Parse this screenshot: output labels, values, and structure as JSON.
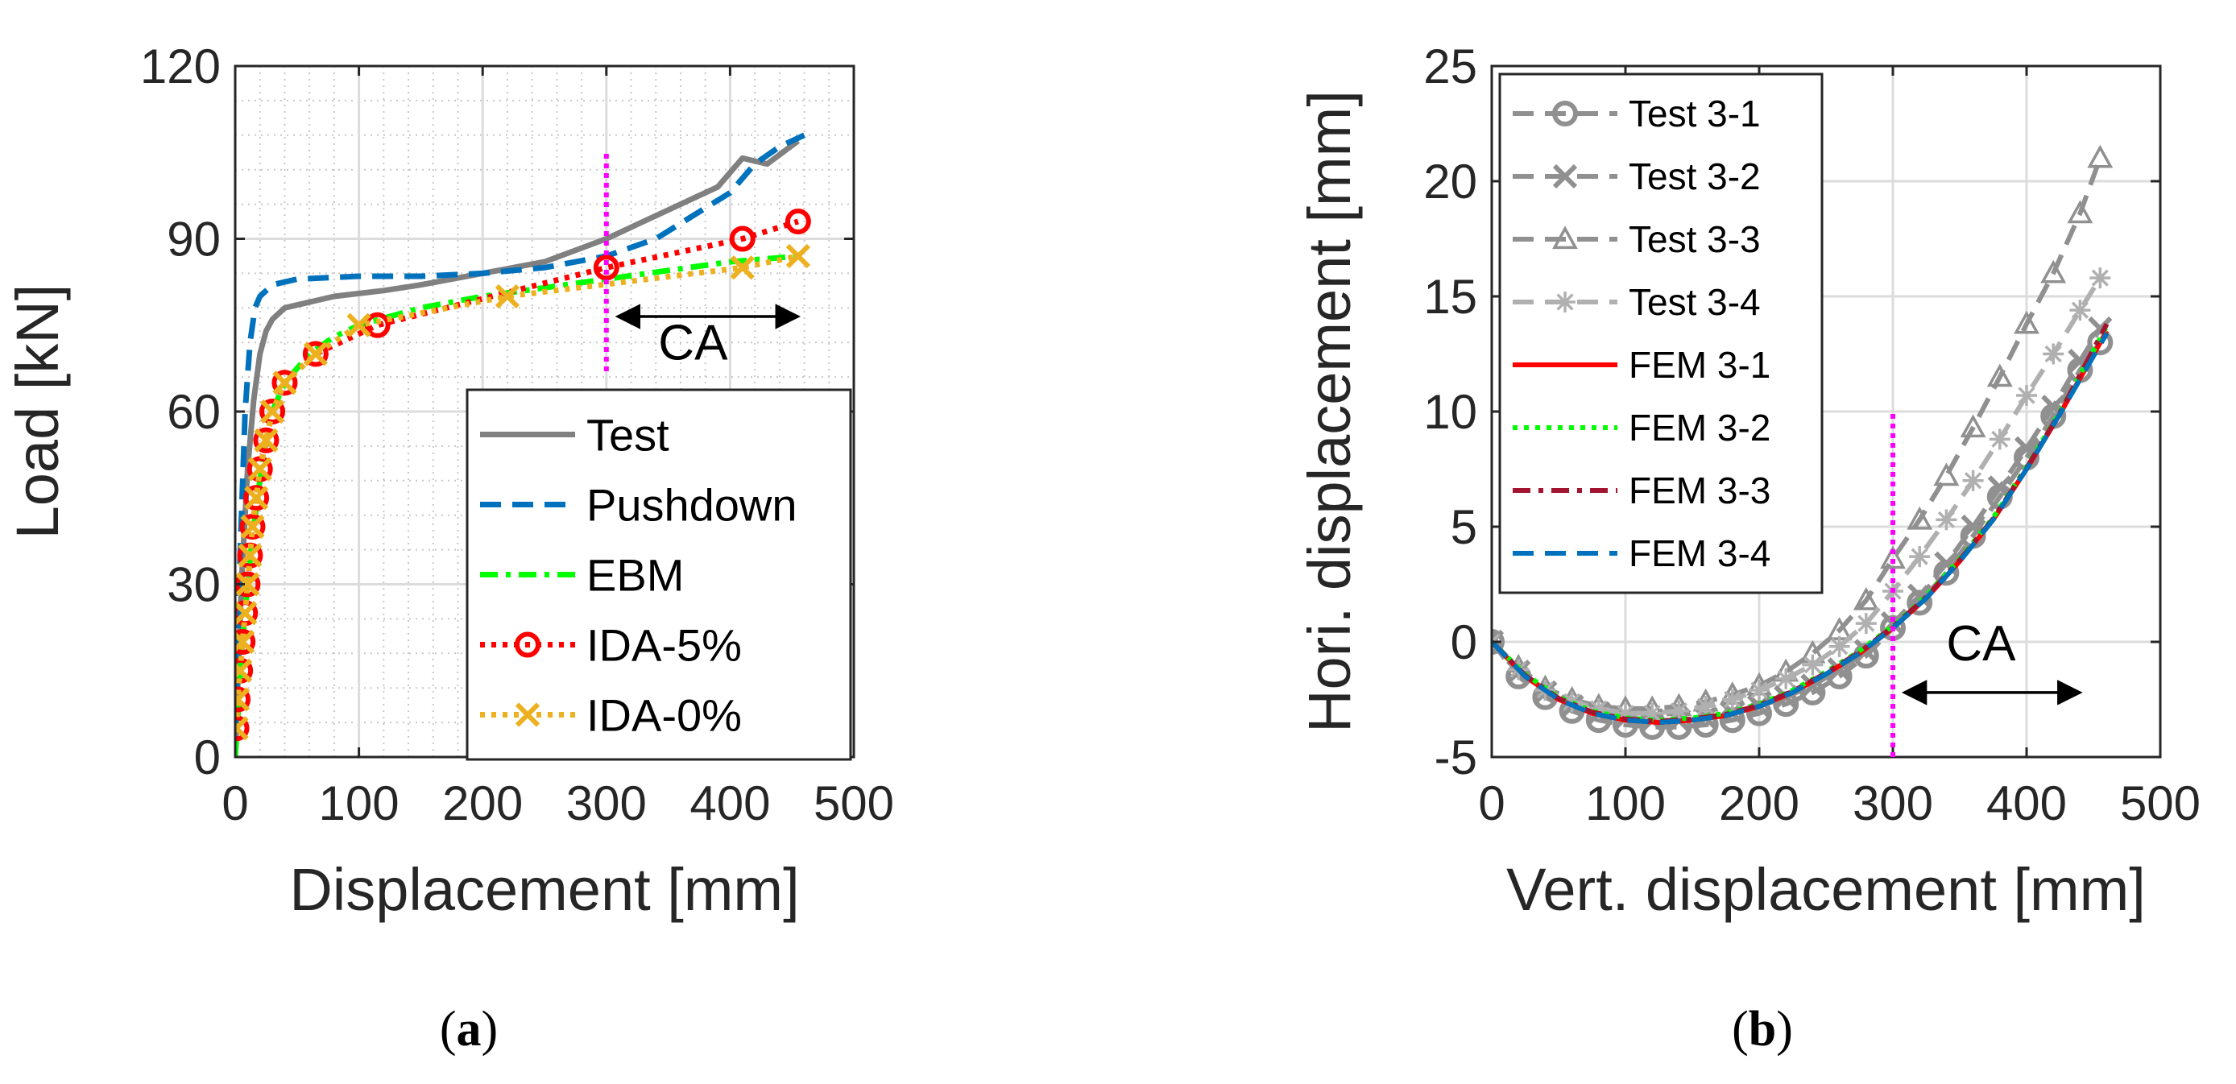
{
  "chart_data": [
    {
      "type": "line",
      "panel_label": {
        "open": "(",
        "letter": "a",
        "close": ")"
      },
      "xlabel": "Displacement [mm]",
      "ylabel": "Load [kN]",
      "xlim": [
        0,
        500
      ],
      "ylim": [
        0,
        120
      ],
      "xticks": [
        0,
        100,
        200,
        300,
        400,
        500
      ],
      "yticks": [
        0,
        30,
        60,
        90,
        120
      ],
      "grid": true,
      "legend_position": "bottom-right",
      "annotation": {
        "text": "CA",
        "vline_x": 300,
        "vline_y": [
          67,
          105
        ],
        "arrow_x": [
          300,
          455
        ],
        "arrow_y": 76.5,
        "text_x": 342,
        "text_y": 69
      },
      "series": [
        {
          "name": "Test",
          "color": "#808080",
          "style": "solid",
          "marker": "none",
          "x": [
            0,
            5,
            10,
            15,
            20,
            25,
            30,
            35,
            40,
            50,
            60,
            80,
            100,
            120,
            150,
            200,
            250,
            300,
            330,
            360,
            390,
            410,
            430,
            455
          ],
          "y": [
            0,
            30,
            50,
            62,
            70,
            74,
            76,
            77,
            78,
            78.5,
            79,
            80,
            80.5,
            81,
            82,
            84,
            86,
            90,
            93,
            96,
            99,
            104,
            103,
            107
          ]
        },
        {
          "name": "Pushdown",
          "color": "#0072BD",
          "style": "dashed",
          "marker": "none",
          "x": [
            0,
            4,
            8,
            12,
            16,
            20,
            30,
            50,
            100,
            150,
            200,
            250,
            300,
            340,
            370,
            400,
            420,
            440,
            460
          ],
          "y": [
            0,
            35,
            60,
            72,
            78,
            80,
            82,
            83,
            83.5,
            83.5,
            84,
            85,
            87,
            90,
            94,
            98,
            103,
            106,
            108
          ]
        },
        {
          "name": "EBM",
          "color": "#00FF00",
          "style": "dashdot",
          "marker": "none",
          "x": [
            0,
            3,
            6,
            10,
            15,
            20,
            25,
            30,
            40,
            60,
            80,
            100,
            150,
            200,
            250,
            300,
            350,
            400,
            455
          ],
          "y": [
            0,
            10,
            20,
            30,
            40,
            48,
            55,
            60,
            65,
            70,
            73,
            75,
            78,
            80,
            81.5,
            83,
            84.5,
            86,
            87
          ]
        },
        {
          "name": "IDA-5%",
          "color": "#FF0000",
          "style": "dotted",
          "marker": "circle",
          "x": [
            1,
            2,
            4,
            6,
            8,
            10,
            12,
            14,
            17,
            20,
            25,
            30,
            40,
            65,
            115,
            300,
            410,
            455
          ],
          "y": [
            5,
            10,
            15,
            20,
            25,
            30,
            35,
            40,
            45,
            50,
            55,
            60,
            65,
            70,
            75,
            85,
            90,
            93
          ]
        },
        {
          "name": "IDA-0%",
          "color": "#EDB120",
          "style": "dotted",
          "marker": "x",
          "x": [
            1,
            2,
            4,
            6,
            8,
            10,
            12,
            14,
            17,
            20,
            25,
            30,
            40,
            65,
            100,
            220,
            410,
            455
          ],
          "y": [
            5,
            10,
            15,
            20,
            25,
            30,
            35,
            40,
            45,
            50,
            55,
            60,
            65,
            70,
            75,
            80,
            85,
            87
          ]
        }
      ]
    },
    {
      "type": "line",
      "panel_label": {
        "open": "(",
        "letter": "b",
        "close": ")"
      },
      "xlabel": "Vert. displacement [mm]",
      "ylabel": "Hori. displacement [mm]",
      "xlim": [
        0,
        500
      ],
      "ylim": [
        -5,
        25
      ],
      "xticks": [
        0,
        100,
        200,
        300,
        400,
        500
      ],
      "yticks": [
        -5,
        0,
        5,
        10,
        15,
        20,
        25
      ],
      "grid": true,
      "legend_position": "top-left",
      "annotation": {
        "text": "CA",
        "vline_x": 300,
        "vline_y": [
          -5,
          10
        ],
        "arrow_x": [
          300,
          440
        ],
        "arrow_y": -2.2,
        "text_x": 340,
        "text_y": -0.8
      },
      "series": [
        {
          "name": "Test 3-1",
          "color": "#909090",
          "style": "dashed",
          "marker": "circle",
          "x": [
            0,
            20,
            40,
            60,
            80,
            100,
            120,
            140,
            160,
            180,
            200,
            220,
            240,
            260,
            280,
            300,
            320,
            340,
            360,
            380,
            400,
            420,
            440,
            455
          ],
          "y": [
            0,
            -1.5,
            -2.4,
            -3,
            -3.4,
            -3.6,
            -3.7,
            -3.7,
            -3.6,
            -3.4,
            -3.1,
            -2.7,
            -2.2,
            -1.5,
            -0.6,
            0.6,
            1.7,
            3,
            4.6,
            6.3,
            8,
            9.8,
            11.8,
            13
          ]
        },
        {
          "name": "Test 3-2",
          "color": "#909090",
          "style": "dashed",
          "marker": "x",
          "x": [
            0,
            20,
            40,
            60,
            80,
            100,
            120,
            140,
            160,
            180,
            200,
            220,
            240,
            260,
            280,
            300,
            320,
            340,
            360,
            380,
            400,
            420,
            440,
            455
          ],
          "y": [
            0,
            -1.3,
            -2.2,
            -2.8,
            -3.1,
            -3.3,
            -3.4,
            -3.4,
            -3.3,
            -3.1,
            -2.8,
            -2.4,
            -1.9,
            -1.2,
            -0.4,
            0.8,
            2,
            3.4,
            5,
            6.7,
            8.4,
            10.2,
            12.2,
            13.6
          ]
        },
        {
          "name": "Test 3-3",
          "color": "#909090",
          "style": "dashed",
          "marker": "triangle",
          "x": [
            0,
            20,
            40,
            60,
            80,
            100,
            120,
            140,
            160,
            180,
            200,
            220,
            240,
            260,
            280,
            300,
            320,
            340,
            360,
            380,
            400,
            420,
            440,
            455
          ],
          "y": [
            0,
            -1.1,
            -2,
            -2.5,
            -2.8,
            -2.9,
            -2.9,
            -2.8,
            -2.6,
            -2.3,
            -1.9,
            -1.3,
            -0.5,
            0.5,
            1.8,
            3.6,
            5.3,
            7.2,
            9.3,
            11.5,
            13.8,
            16,
            18.6,
            21
          ]
        },
        {
          "name": "Test 3-4",
          "color": "#B0B0B0",
          "style": "dashed",
          "marker": "asterisk",
          "x": [
            0,
            20,
            40,
            60,
            80,
            100,
            120,
            140,
            160,
            180,
            200,
            220,
            240,
            260,
            280,
            300,
            320,
            340,
            360,
            380,
            400,
            420,
            440,
            455
          ],
          "y": [
            0,
            -1.2,
            -2.1,
            -2.6,
            -2.9,
            -3.1,
            -3.1,
            -3,
            -2.8,
            -2.5,
            -2.1,
            -1.6,
            -1,
            -0.2,
            0.8,
            2.2,
            3.7,
            5.3,
            7,
            8.8,
            10.7,
            12.5,
            14.4,
            15.8
          ]
        },
        {
          "name": "FEM 3-1",
          "color": "#FF0000",
          "style": "solid",
          "marker": "none",
          "x": [
            0,
            25,
            50,
            75,
            100,
            125,
            150,
            175,
            200,
            225,
            250,
            275,
            300,
            325,
            350,
            375,
            400,
            425,
            460
          ],
          "y": [
            0,
            -1.5,
            -2.5,
            -3.1,
            -3.4,
            -3.5,
            -3.4,
            -3.2,
            -2.8,
            -2.2,
            -1.4,
            -0.5,
            0.6,
            1.9,
            3.5,
            5.3,
            7.5,
            9.9,
            13.5
          ]
        },
        {
          "name": "FEM 3-2",
          "color": "#00FF00",
          "style": "dotted",
          "marker": "none",
          "x": [
            0,
            25,
            50,
            75,
            100,
            125,
            150,
            175,
            200,
            225,
            250,
            275,
            300,
            325,
            350,
            375,
            400,
            425,
            460
          ],
          "y": [
            0,
            -1.4,
            -2.4,
            -3,
            -3.3,
            -3.4,
            -3.3,
            -3.1,
            -2.7,
            -2.1,
            -1.3,
            -0.4,
            0.7,
            2,
            3.6,
            5.4,
            7.6,
            10,
            13.7
          ]
        },
        {
          "name": "FEM 3-3",
          "color": "#A2142F",
          "style": "dashdot",
          "marker": "none",
          "x": [
            0,
            25,
            50,
            75,
            100,
            125,
            150,
            175,
            200,
            225,
            250,
            275,
            300,
            325,
            350,
            375,
            400,
            425,
            460
          ],
          "y": [
            0,
            -1.45,
            -2.45,
            -3.05,
            -3.35,
            -3.45,
            -3.35,
            -3.15,
            -2.75,
            -2.15,
            -1.35,
            -0.45,
            0.65,
            1.95,
            3.55,
            5.35,
            7.55,
            9.95,
            13.8
          ]
        },
        {
          "name": "FEM 3-4",
          "color": "#0072BD",
          "style": "dashed",
          "marker": "none",
          "x": [
            0,
            25,
            50,
            75,
            100,
            125,
            150,
            175,
            200,
            225,
            250,
            275,
            300,
            325,
            350,
            375,
            400,
            425,
            460
          ],
          "y": [
            0,
            -1.5,
            -2.5,
            -3.1,
            -3.4,
            -3.5,
            -3.4,
            -3.2,
            -2.8,
            -2.2,
            -1.4,
            -0.5,
            0.6,
            1.9,
            3.5,
            5.3,
            7.5,
            9.9,
            13.4
          ]
        }
      ]
    }
  ]
}
